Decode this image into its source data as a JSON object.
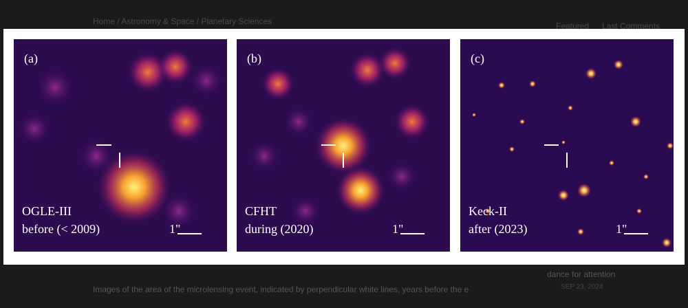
{
  "page": {
    "breadcrumb": [
      "Home",
      "Astronomy & Space",
      "Planetary Sciences"
    ],
    "tabs": [
      "Featured",
      "Last Comments"
    ],
    "caption": "Images of the area of the microlensing event, indicated by perpendicular white lines, years before the e",
    "sidebar_title": "dance for attention",
    "sidebar_date": "SEP 23, 2024",
    "panels": [
      {
        "tag": "(a)",
        "instrument": "OGLE-III",
        "epoch": "before (< 2009)",
        "scale": "1\""
      },
      {
        "tag": "(b)",
        "instrument": "CFHT",
        "epoch": "during (2020)",
        "scale": "1\""
      },
      {
        "tag": "(c)",
        "instrument": "Keck-II",
        "epoch": "after (2023)",
        "scale": "1\""
      }
    ]
  }
}
